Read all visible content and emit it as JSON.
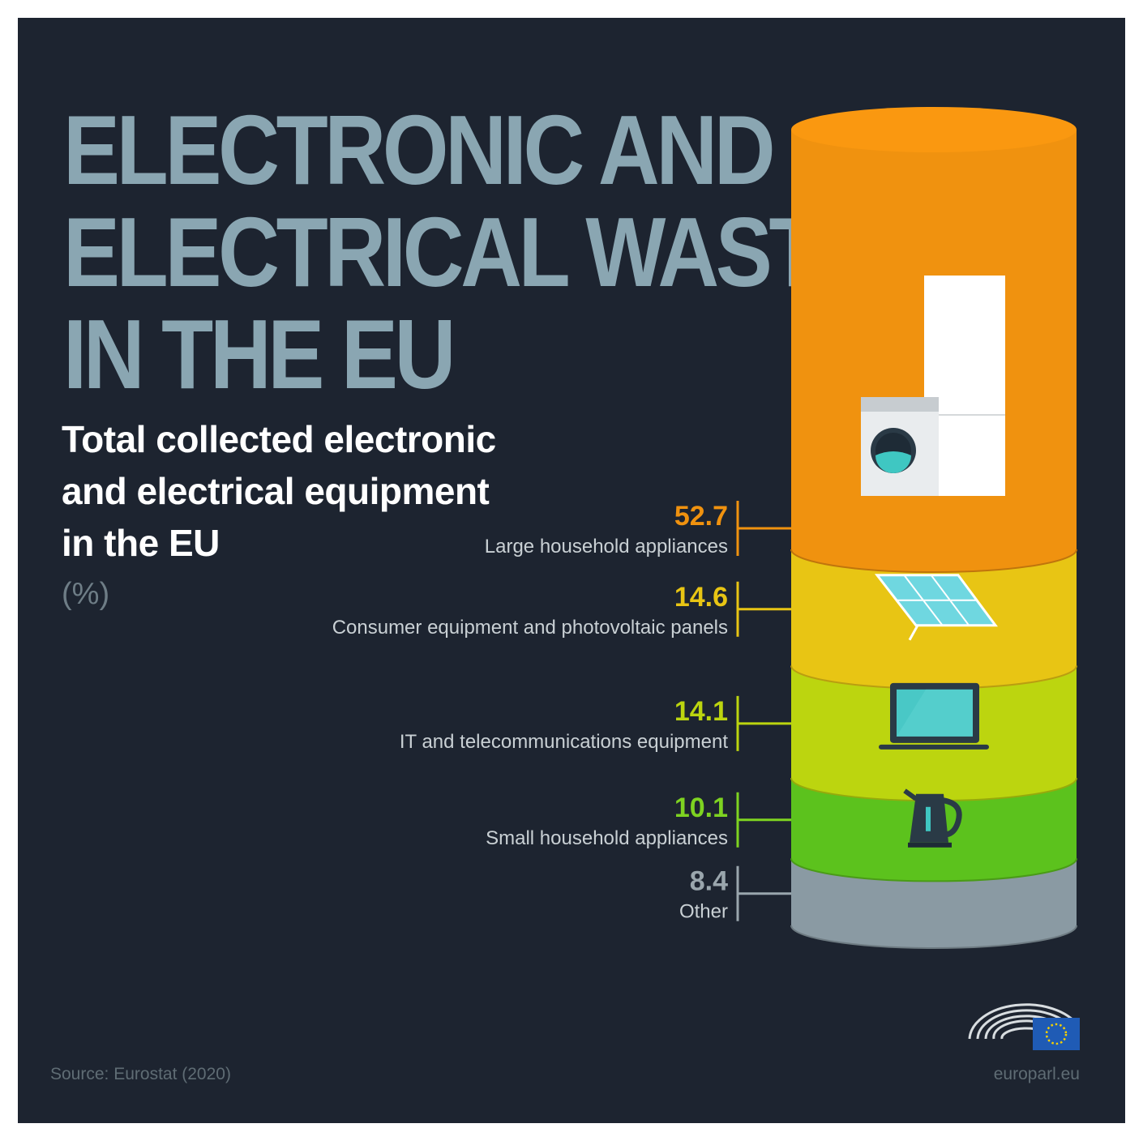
{
  "header": {
    "title_lines": [
      "ELECTRONIC AND",
      "ELECTRICAL WASTE",
      "IN THE EU"
    ],
    "subtitle_lines": [
      "Total collected electronic",
      "and electrical equipment",
      "in the EU"
    ],
    "unit": "(%)"
  },
  "footer": {
    "source": "Source: Eurostat (2020)",
    "site": "europarl.eu"
  },
  "colors": {
    "background": "#1d2430",
    "title": "#8aa6b2"
  },
  "chart_data": {
    "type": "bar",
    "style": "stacked-cylinder",
    "title": "Total collected electronic and electrical equipment in the EU",
    "ylabel": "(%)",
    "categories": [
      "Large household appliances",
      "Consumer equipment and photovoltaic panels",
      "IT and telecommunications equipment",
      "Small household appliances",
      "Other"
    ],
    "values": [
      52.7,
      14.6,
      14.1,
      10.1,
      8.4
    ],
    "value_labels": [
      "52.7",
      "14.6",
      "14.1",
      "10.1",
      "8.4"
    ],
    "colors": [
      "#f0920f",
      "#e8c514",
      "#bcd50f",
      "#5cc21d",
      "#8a9aa3"
    ],
    "label_colors": [
      "#f0920f",
      "#e8c514",
      "#bcd50f",
      "#7ed321",
      "#9aa6ad"
    ],
    "icons": [
      "washing-machine-fridge-icon",
      "solar-panel-icon",
      "laptop-icon",
      "kettle-icon",
      ""
    ],
    "legend": "none",
    "grid": false
  }
}
